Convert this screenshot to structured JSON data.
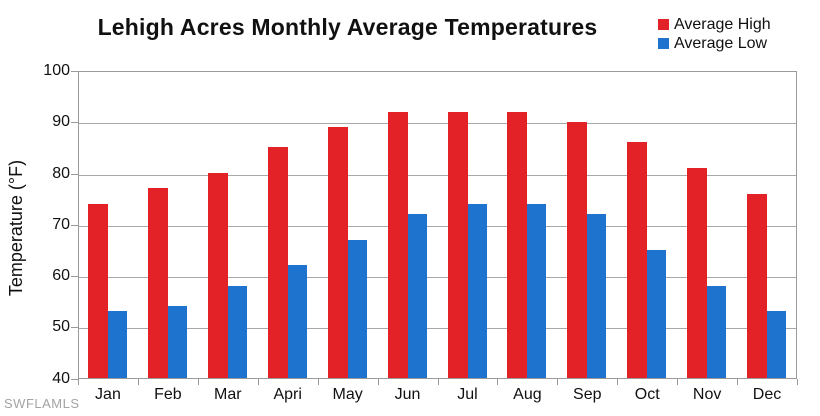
{
  "title": "Lehigh Acres Monthly Average Temperatures",
  "watermark": "SWFLAMLS",
  "colors": {
    "average_high": "#e32227",
    "average_low": "#1e73cf",
    "gridline": "#a8a8a8",
    "axis": "#9a9a9a",
    "text": "#111111",
    "watermark": "#a3a3a3",
    "background": "#ffffff"
  },
  "legend": {
    "position": "top-right",
    "items": [
      {
        "label": "Average High",
        "color": "#e32227"
      },
      {
        "label": "Average Low",
        "color": "#1e73cf"
      }
    ]
  },
  "chart_data": {
    "type": "bar",
    "title": "Lehigh Acres Monthly Average Temperatures",
    "categories": [
      "Jan",
      "Feb",
      "Mar",
      "Apri",
      "May",
      "Jun",
      "Jul",
      "Aug",
      "Sep",
      "Oct",
      "Nov",
      "Dec"
    ],
    "series": [
      {
        "name": "Average High",
        "color": "#e32227",
        "values": [
          74,
          77,
          80,
          85,
          89,
          92,
          92,
          92,
          90,
          86,
          81,
          76
        ]
      },
      {
        "name": "Average Low",
        "color": "#1e73cf",
        "values": [
          53,
          54,
          58,
          62,
          67,
          72,
          74,
          74,
          72,
          65,
          58,
          53
        ]
      }
    ],
    "xlabel": "",
    "ylabel": "Temperature (°F)",
    "ylim": [
      40,
      100
    ],
    "yticks": [
      40,
      50,
      60,
      70,
      80,
      90,
      100
    ],
    "grid": true,
    "legend_position": "top-right"
  }
}
